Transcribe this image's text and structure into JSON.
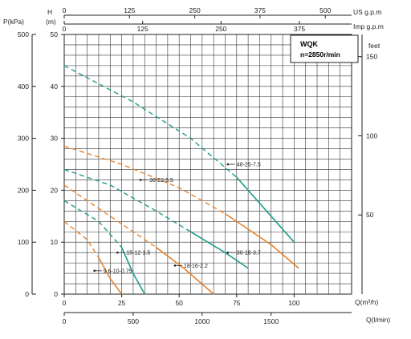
{
  "chart_data": {
    "type": "line",
    "legend_box": {
      "title": "WQK",
      "subtitle": "n=2850r/min",
      "position": "top-right"
    },
    "axes": {
      "h_label": "H\n(m)",
      "p_label": "P(kPa)",
      "q_m3h_label": "Q(m³/h)",
      "q_lmin_label": "Q(l/min)",
      "us_gpm_label": "US g.p.m",
      "imp_gpm_label": "Imp g.p.m",
      "feet_label": "feet",
      "x_range_m3h": [
        0,
        125
      ],
      "y_range_m": [
        0,
        50
      ],
      "h_ticks": [
        "0",
        "10",
        "20",
        "30",
        "40",
        "50"
      ],
      "p_ticks": [
        "0",
        "100",
        "200",
        "300",
        "400",
        "500"
      ],
      "feet_ticks": [
        "50",
        "100",
        "150"
      ],
      "q_m3h_ticks": [
        "0",
        "25",
        "50",
        "75",
        "100"
      ],
      "q_lmin_ticks": [
        "0",
        "500",
        "1000",
        "1500"
      ],
      "us_gpm_ticks": [
        "0",
        "125",
        "250",
        "375",
        "500"
      ],
      "imp_gpm_ticks": [
        "0",
        "125",
        "250",
        "375"
      ],
      "grid": true
    },
    "series": [
      {
        "name": "9.6-10-0.75",
        "color": "#e5822a",
        "x": [
          0,
          10,
          15,
          20,
          25
        ],
        "y": [
          14,
          10.5,
          7,
          3,
          0
        ],
        "operating_end": 15,
        "label_at": [
          17,
          4.5
        ]
      },
      {
        "name": "15-12-1.5",
        "color": "#1e9c8c",
        "x": [
          0,
          15,
          25,
          30,
          35
        ],
        "y": [
          18,
          14,
          9,
          4,
          0
        ],
        "operating_end": 25,
        "label_at": [
          27,
          8
        ]
      },
      {
        "name": "18-16-2.2",
        "color": "#e5822a",
        "x": [
          0,
          20,
          40,
          52,
          65
        ],
        "y": [
          21,
          15,
          9,
          5,
          0
        ],
        "operating_end": 40,
        "label_at": [
          52,
          5.5
        ]
      },
      {
        "name": "30-18-3.7",
        "color": "#1e9c8c",
        "x": [
          0,
          20,
          40,
          55,
          70,
          80
        ],
        "y": [
          24,
          21,
          16,
          12,
          8,
          5
        ],
        "operating_end": 55,
        "label_at": [
          75,
          8
        ]
      },
      {
        "name": "36-22-5.5",
        "color": "#e5822a",
        "x": [
          0,
          25,
          50,
          70,
          90,
          102
        ],
        "y": [
          28.5,
          25,
          20.5,
          15.5,
          9.5,
          5
        ],
        "operating_end": 70,
        "label_at": [
          37,
          22
        ]
      },
      {
        "name": "48-25-7.5",
        "color": "#1e9c8c",
        "x": [
          0,
          30,
          55,
          75,
          90,
          100
        ],
        "y": [
          44,
          37,
          30,
          22.5,
          15,
          10
        ],
        "operating_end": 75,
        "label_at": [
          75,
          25
        ]
      }
    ]
  }
}
